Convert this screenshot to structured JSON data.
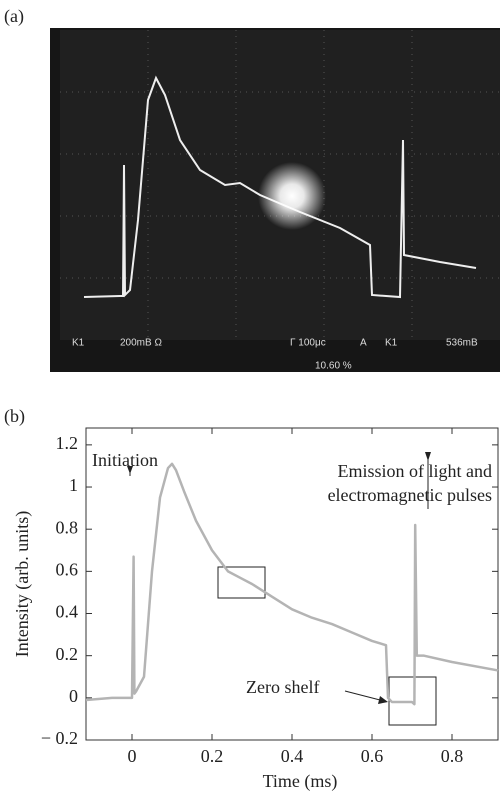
{
  "panel_a": {
    "label": "(a)",
    "screen_texts": [
      "K1",
      "200mB Ω",
      "Γ 100μc",
      "A",
      "K1",
      "536mB",
      "10.60 %"
    ]
  },
  "chart_data": {
    "type": "line",
    "label": "(b)",
    "x_label": "Time (ms)",
    "y_label": "Intensity (arb. units)",
    "xlim": [
      -0.115,
      0.915
    ],
    "ylim": [
      -0.2,
      1.28
    ],
    "xticks": [
      0,
      0.2,
      0.4,
      0.6,
      0.8
    ],
    "yticks": [
      {
        "value": -0.2,
        "label": "− 0.2"
      },
      0,
      0.2,
      0.4,
      0.6,
      0.8,
      1.0,
      1.2
    ],
    "series": [
      {
        "color": "#b4b4b4",
        "x": [
          -0.115,
          -0.05,
          0.0,
          0.004,
          0.006,
          0.01,
          0.03,
          0.05,
          0.07,
          0.09,
          0.1,
          0.11,
          0.13,
          0.16,
          0.2,
          0.24,
          0.27,
          0.3,
          0.35,
          0.4,
          0.45,
          0.5,
          0.55,
          0.6,
          0.635,
          0.64,
          0.65,
          0.7,
          0.706,
          0.708,
          0.712,
          0.73,
          0.8,
          0.915
        ],
        "values": [
          -0.01,
          0.0,
          0.0,
          0.67,
          0.02,
          0.03,
          0.1,
          0.6,
          0.95,
          1.09,
          1.11,
          1.08,
          0.98,
          0.84,
          0.7,
          0.6,
          0.57,
          0.54,
          0.48,
          0.42,
          0.38,
          0.35,
          0.31,
          0.27,
          0.25,
          0.0,
          -0.02,
          -0.02,
          -0.03,
          0.82,
          0.2,
          0.2,
          0.17,
          0.13
        ]
      }
    ],
    "annotations": [
      "Initiation",
      "Emission of light and",
      "electromagnetic pulses",
      "Zero shelf"
    ]
  }
}
